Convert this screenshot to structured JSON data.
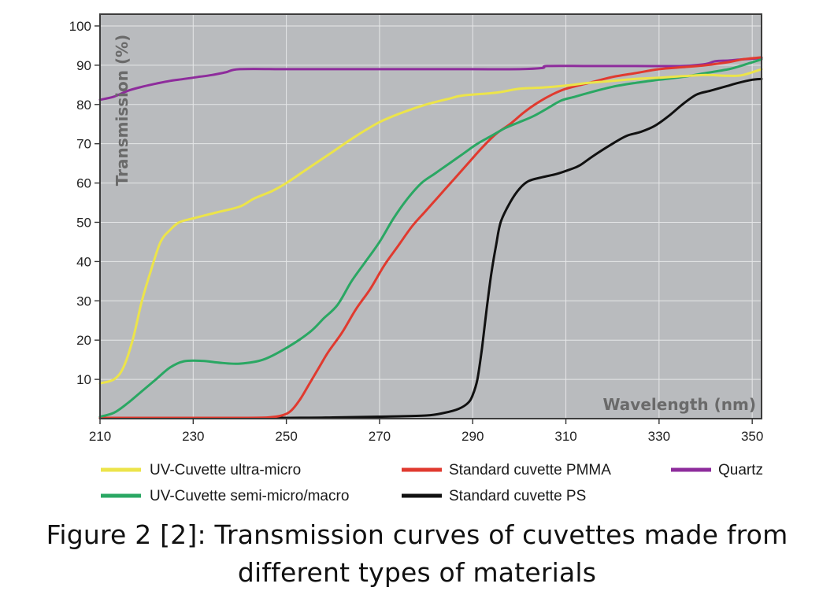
{
  "chart_data": {
    "type": "line",
    "title": "",
    "xlabel": "Wavelength (nm)",
    "ylabel": "Transmission (%)",
    "xlim": [
      210,
      352
    ],
    "ylim": [
      0,
      103
    ],
    "xticks": [
      "210",
      "230",
      "250",
      "270",
      "290",
      "310",
      "330",
      "350"
    ],
    "yticks": [
      "10",
      "20",
      "30",
      "40",
      "50",
      "60",
      "70",
      "80",
      "90",
      "100"
    ],
    "grid": true,
    "legend_position": "bottom",
    "series": [
      {
        "name": "UV-Cuvette ultra-micro",
        "color": "#ece44a",
        "points": [
          [
            210,
            9
          ],
          [
            213,
            10
          ],
          [
            215,
            13
          ],
          [
            217,
            20
          ],
          [
            219,
            30
          ],
          [
            221,
            38
          ],
          [
            223,
            45
          ],
          [
            225,
            48
          ],
          [
            227,
            50
          ],
          [
            230,
            51
          ],
          [
            235,
            52.5
          ],
          [
            240,
            54
          ],
          [
            243,
            56
          ],
          [
            247,
            58
          ],
          [
            250,
            60
          ],
          [
            255,
            64
          ],
          [
            260,
            68
          ],
          [
            265,
            72
          ],
          [
            270,
            75.5
          ],
          [
            275,
            78
          ],
          [
            280,
            80
          ],
          [
            285,
            81.5
          ],
          [
            288,
            82.3
          ],
          [
            295,
            83
          ],
          [
            300,
            84
          ],
          [
            305,
            84.3
          ],
          [
            310,
            84.8
          ],
          [
            315,
            85.5
          ],
          [
            320,
            86
          ],
          [
            325,
            86.5
          ],
          [
            330,
            86.8
          ],
          [
            335,
            87.2
          ],
          [
            340,
            87.5
          ],
          [
            345,
            87.3
          ],
          [
            348,
            87.5
          ],
          [
            352,
            89
          ]
        ]
      },
      {
        "name": "UV-Cuvette semi-micro/macro",
        "color": "#2aa763",
        "points": [
          [
            210,
            0.5
          ],
          [
            213,
            1.5
          ],
          [
            216,
            4
          ],
          [
            219,
            7
          ],
          [
            222,
            10
          ],
          [
            225,
            13
          ],
          [
            228,
            14.6
          ],
          [
            232,
            14.7
          ],
          [
            236,
            14.2
          ],
          [
            240,
            14
          ],
          [
            245,
            15
          ],
          [
            250,
            18
          ],
          [
            255,
            22
          ],
          [
            258,
            25.5
          ],
          [
            261,
            29
          ],
          [
            264,
            35
          ],
          [
            267,
            40
          ],
          [
            270,
            45
          ],
          [
            273,
            51
          ],
          [
            276,
            56
          ],
          [
            279,
            60
          ],
          [
            282,
            62.5
          ],
          [
            285,
            65
          ],
          [
            288,
            67.5
          ],
          [
            291,
            70
          ],
          [
            294,
            72
          ],
          [
            297,
            74
          ],
          [
            300,
            75.5
          ],
          [
            303,
            77
          ],
          [
            306,
            79
          ],
          [
            309,
            81
          ],
          [
            312,
            82
          ],
          [
            315,
            83
          ],
          [
            320,
            84.5
          ],
          [
            325,
            85.5
          ],
          [
            330,
            86.3
          ],
          [
            335,
            87
          ],
          [
            340,
            88
          ],
          [
            345,
            89
          ],
          [
            348,
            90
          ],
          [
            352,
            91.5
          ]
        ]
      },
      {
        "name": "Standard cuvette PMMA",
        "color": "#e03a2f",
        "points": [
          [
            210,
            0.2
          ],
          [
            230,
            0.2
          ],
          [
            240,
            0.2
          ],
          [
            246,
            0.3
          ],
          [
            249,
            0.8
          ],
          [
            251,
            2
          ],
          [
            253,
            5
          ],
          [
            255,
            9
          ],
          [
            257,
            13
          ],
          [
            259,
            17
          ],
          [
            262,
            22
          ],
          [
            265,
            28
          ],
          [
            268,
            33
          ],
          [
            271,
            39
          ],
          [
            274,
            44
          ],
          [
            277,
            49
          ],
          [
            280,
            53
          ],
          [
            283,
            57
          ],
          [
            286,
            61
          ],
          [
            289,
            65
          ],
          [
            292,
            69
          ],
          [
            295,
            72.5
          ],
          [
            298,
            75
          ],
          [
            301,
            78
          ],
          [
            304,
            80.5
          ],
          [
            307,
            82.5
          ],
          [
            310,
            84
          ],
          [
            315,
            85.5
          ],
          [
            320,
            87
          ],
          [
            325,
            88
          ],
          [
            330,
            89
          ],
          [
            335,
            89.5
          ],
          [
            340,
            90
          ],
          [
            345,
            90.8
          ],
          [
            348,
            91.5
          ],
          [
            352,
            92
          ]
        ]
      },
      {
        "name": "Standard cuvette PS",
        "color": "#111111",
        "points": [
          [
            210,
            0.1
          ],
          [
            250,
            0.2
          ],
          [
            260,
            0.3
          ],
          [
            270,
            0.5
          ],
          [
            280,
            0.8
          ],
          [
            284,
            1.5
          ],
          [
            287,
            2.5
          ],
          [
            289,
            4
          ],
          [
            290,
            6
          ],
          [
            291,
            10
          ],
          [
            292,
            18
          ],
          [
            293,
            28
          ],
          [
            294,
            37
          ],
          [
            295,
            44
          ],
          [
            296,
            50
          ],
          [
            298,
            55
          ],
          [
            300,
            58.5
          ],
          [
            302,
            60.5
          ],
          [
            305,
            61.5
          ],
          [
            308,
            62.3
          ],
          [
            311,
            63.5
          ],
          [
            313,
            64.5
          ],
          [
            316,
            67
          ],
          [
            320,
            70
          ],
          [
            323,
            72
          ],
          [
            326,
            73
          ],
          [
            329,
            74.5
          ],
          [
            332,
            77
          ],
          [
            335,
            80
          ],
          [
            338,
            82.5
          ],
          [
            341,
            83.5
          ],
          [
            344,
            84.5
          ],
          [
            347,
            85.5
          ],
          [
            350,
            86.3
          ],
          [
            352,
            86.5
          ]
        ]
      },
      {
        "name": "Quartz",
        "color": "#8e2c9c",
        "points": [
          [
            210,
            81.2
          ],
          [
            213,
            82
          ],
          [
            216,
            83.5
          ],
          [
            219,
            84.5
          ],
          [
            222,
            85.3
          ],
          [
            225,
            86
          ],
          [
            228,
            86.5
          ],
          [
            231,
            87
          ],
          [
            234,
            87.5
          ],
          [
            237,
            88.2
          ],
          [
            240,
            89
          ],
          [
            250,
            89
          ],
          [
            260,
            89
          ],
          [
            270,
            89
          ],
          [
            280,
            89
          ],
          [
            290,
            89
          ],
          [
            300,
            89
          ],
          [
            305,
            89.3
          ],
          [
            306,
            89.8
          ],
          [
            315,
            89.8
          ],
          [
            325,
            89.8
          ],
          [
            335,
            89.8
          ],
          [
            340,
            90.3
          ],
          [
            342,
            91
          ],
          [
            345,
            91.2
          ],
          [
            348,
            91.5
          ],
          [
            352,
            91.8
          ]
        ]
      }
    ]
  },
  "caption": {
    "line1": "Figure 2 [2]: Transmission curves of cuvettes made from",
    "line2": "different types of materials"
  },
  "colors": {
    "plot_background": "#b9bbbe",
    "grid": "#e6e7e8",
    "frame": "#3c3c3c"
  }
}
